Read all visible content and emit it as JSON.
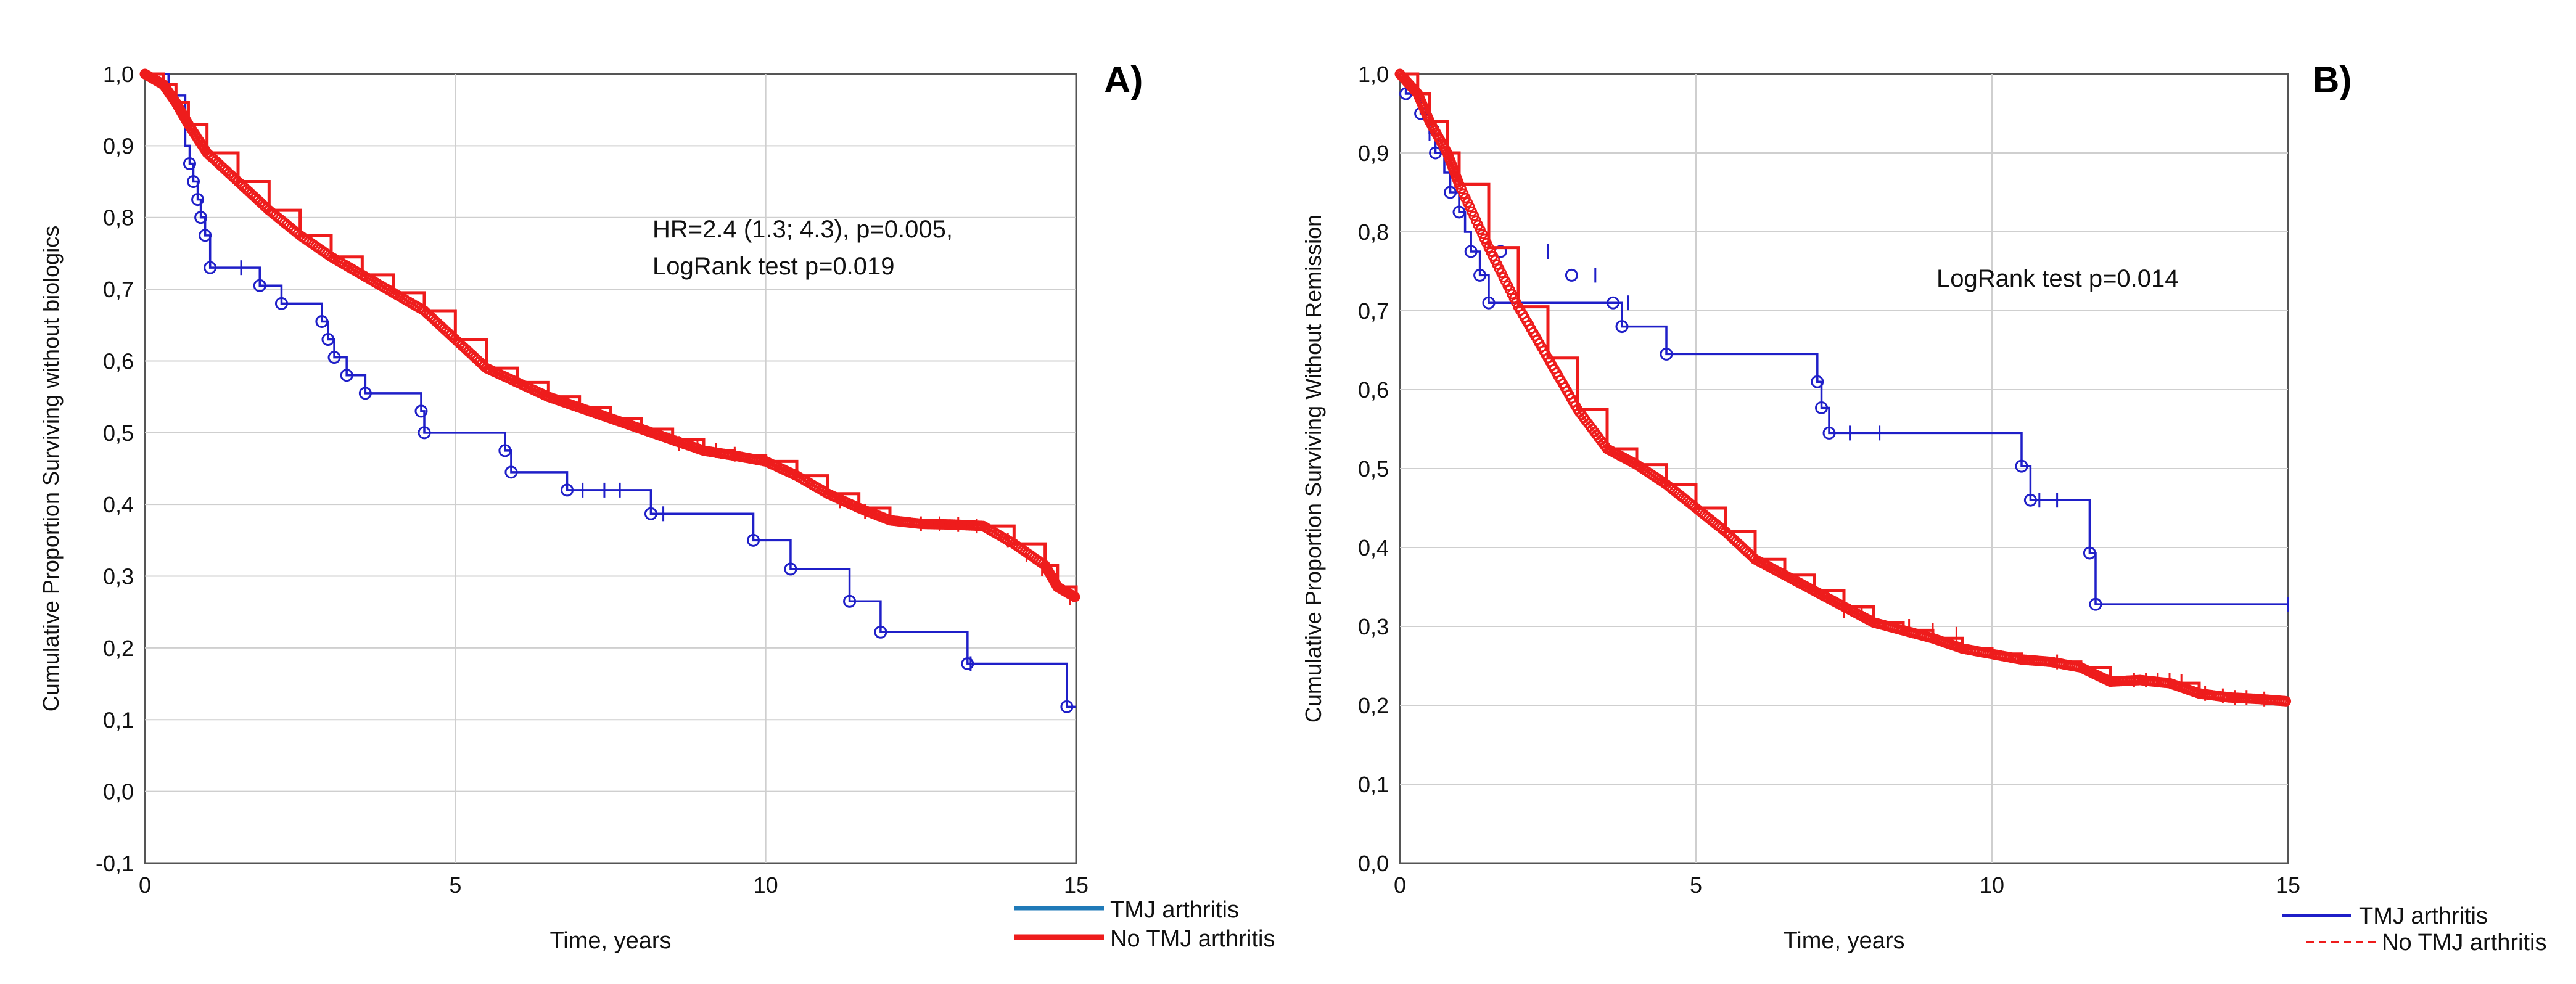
{
  "chart_data": [
    {
      "type": "line",
      "subtype": "kaplan-meier",
      "panel_label": "A)",
      "title": "",
      "xlabel": "Time, years",
      "ylabel": "Cumulative Proportion Surviving without biologics",
      "xlim": [
        0,
        15
      ],
      "ylim": [
        -0.1,
        1.0
      ],
      "xticks": [
        0,
        5,
        10,
        15
      ],
      "xtick_labels": [
        "0",
        "5",
        "10",
        "15"
      ],
      "yticks": [
        -0.1,
        0.0,
        0.1,
        0.2,
        0.3,
        0.4,
        0.5,
        0.6,
        0.7,
        0.8,
        0.9,
        1.0
      ],
      "ytick_labels": [
        "-0,1",
        "0,0",
        "0,1",
        "0,2",
        "0,3",
        "0,4",
        "0,5",
        "0,6",
        "0,7",
        "0,8",
        "0,9",
        "1,0"
      ],
      "grid": true,
      "legend_position": "bottom-right outside",
      "annotations": [
        "HR=2.4 (1.3; 4.3),  p=0.005,",
        "LogRank test p=0.019"
      ],
      "series": [
        {
          "name": "TMJ arthritis",
          "color": "#1f1fc8",
          "legend_color": "#1f7ab8",
          "style": "step",
          "x": [
            0,
            0.38,
            0.65,
            0.72,
            0.78,
            0.85,
            0.9,
            0.97,
            1.05,
            1.85,
            2.2,
            2.85,
            2.95,
            3.05,
            3.25,
            3.55,
            4.45,
            4.5,
            5.8,
            5.9,
            6.8,
            8.15,
            9.8,
            10.4,
            11.35,
            11.85,
            13.25,
            14.85,
            15
          ],
          "y": [
            1.0,
            0.97,
            0.9,
            0.875,
            0.85,
            0.825,
            0.8,
            0.775,
            0.73,
            0.705,
            0.68,
            0.655,
            0.63,
            0.605,
            0.58,
            0.555,
            0.53,
            0.5,
            0.475,
            0.445,
            0.42,
            0.387,
            0.35,
            0.31,
            0.265,
            0.222,
            0.178,
            0.118,
            0.118
          ],
          "circle_x": [
            0.72,
            0.78,
            0.85,
            0.9,
            0.97,
            1.05,
            1.85,
            2.2,
            2.85,
            2.95,
            3.05,
            3.25,
            3.55,
            4.45,
            4.5,
            5.8,
            5.9,
            6.8,
            8.15,
            9.8,
            10.4,
            11.35,
            11.85,
            13.25,
            14.85
          ],
          "circle_y": [
            0.875,
            0.85,
            0.825,
            0.8,
            0.775,
            0.73,
            0.705,
            0.68,
            0.655,
            0.63,
            0.605,
            0.58,
            0.555,
            0.53,
            0.5,
            0.475,
            0.445,
            0.42,
            0.387,
            0.35,
            0.31,
            0.265,
            0.222,
            0.178,
            0.118
          ],
          "censor_x": [
            1.55,
            7.05,
            7.4,
            7.65,
            8.35,
            13.3
          ],
          "censor_y": [
            0.73,
            0.42,
            0.42,
            0.42,
            0.387,
            0.178
          ]
        },
        {
          "name": "No TMJ arthritis",
          "color": "#ee1c1c",
          "legend_color": "#ee1c1c",
          "style": "dense-step",
          "x": [
            0,
            0.3,
            0.5,
            0.7,
            1,
            1.5,
            2,
            2.5,
            3,
            3.5,
            4,
            4.5,
            5,
            5.5,
            6,
            6.5,
            7,
            7.5,
            8,
            8.5,
            9,
            9.5,
            10,
            10.5,
            11,
            11.5,
            12,
            12.5,
            13,
            13.5,
            14,
            14.5,
            14.7,
            15
          ],
          "y": [
            1.0,
            0.985,
            0.96,
            0.93,
            0.89,
            0.85,
            0.81,
            0.775,
            0.745,
            0.72,
            0.695,
            0.67,
            0.63,
            0.59,
            0.57,
            0.55,
            0.535,
            0.52,
            0.505,
            0.49,
            0.475,
            0.468,
            0.46,
            0.44,
            0.415,
            0.395,
            0.378,
            0.373,
            0.372,
            0.37,
            0.345,
            0.315,
            0.285,
            0.27
          ],
          "censor_x": [
            8.6,
            8.9,
            9.2,
            9.5,
            11.2,
            11.6,
            12.5,
            12.8,
            13.1,
            13.4,
            13.9,
            14.2,
            14.45,
            14.6,
            14.9
          ],
          "censor_y": [
            0.485,
            0.48,
            0.475,
            0.47,
            0.405,
            0.39,
            0.373,
            0.373,
            0.372,
            0.37,
            0.35,
            0.33,
            0.31,
            0.3,
            0.27
          ]
        }
      ]
    },
    {
      "type": "line",
      "subtype": "kaplan-meier",
      "panel_label": "B)",
      "title": "",
      "xlabel": "Time, years",
      "ylabel": "Cumulative Proportion Surviving Without Remission",
      "xlim": [
        0,
        15
      ],
      "ylim": [
        0.0,
        1.0
      ],
      "xticks": [
        0,
        5,
        10,
        15
      ],
      "xtick_labels": [
        "0",
        "5",
        "10",
        "15"
      ],
      "yticks": [
        0.0,
        0.1,
        0.2,
        0.3,
        0.4,
        0.5,
        0.6,
        0.7,
        0.8,
        0.9,
        1.0
      ],
      "ytick_labels": [
        "0,0",
        "0,1",
        "0,2",
        "0,3",
        "0,4",
        "0,5",
        "0,6",
        "0,7",
        "0,8",
        "0,9",
        "1,0"
      ],
      "grid": true,
      "legend_position": "bottom-right outside",
      "annotations": [
        "LogRank test p=0.014"
      ],
      "series": [
        {
          "name": "TMJ arthritis",
          "color": "#1f1fc8",
          "legend_color": "#1f1fc8",
          "style": "step",
          "x": [
            0,
            0.1,
            0.35,
            0.5,
            0.6,
            0.75,
            0.85,
            1.0,
            1.1,
            1.2,
            1.35,
            1.5,
            1.7,
            2.9,
            3.6,
            3.75,
            4.5,
            7.05,
            7.12,
            7.25,
            10.5,
            10.65,
            11.65,
            11.75,
            15
          ],
          "y": [
            1.0,
            0.975,
            0.95,
            0.925,
            0.9,
            0.875,
            0.85,
            0.825,
            0.8,
            0.775,
            0.745,
            0.71,
            0.71,
            0.71,
            0.71,
            0.68,
            0.645,
            0.61,
            0.577,
            0.545,
            0.503,
            0.46,
            0.393,
            0.328,
            0.328
          ],
          "circle_x": [
            0.1,
            0.35,
            0.6,
            0.85,
            1.0,
            1.2,
            1.35,
            1.5,
            1.7,
            2.9,
            3.6,
            3.75,
            4.5,
            7.05,
            7.12,
            7.25,
            10.5,
            10.65,
            11.65,
            11.75
          ],
          "circle_y": [
            0.975,
            0.95,
            0.9,
            0.85,
            0.825,
            0.775,
            0.745,
            0.71,
            0.775,
            0.745,
            0.71,
            0.68,
            0.645,
            0.61,
            0.577,
            0.545,
            0.503,
            0.46,
            0.393,
            0.328
          ],
          "censor_x": [
            0.5,
            0.65,
            2.5,
            3.3,
            3.85,
            7.6,
            8.1,
            10.8,
            11.1,
            15
          ],
          "censor_y": [
            0.925,
            0.925,
            0.775,
            0.745,
            0.71,
            0.545,
            0.545,
            0.46,
            0.46,
            0.328
          ]
        },
        {
          "name": "No TMJ arthritis",
          "color": "#ee1c1c",
          "legend_color": "#ee1c1c",
          "style": "dense-step",
          "x": [
            0,
            0.3,
            0.5,
            0.8,
            1,
            1.5,
            2,
            2.5,
            3,
            3.5,
            4,
            4.5,
            5,
            5.5,
            6,
            6.5,
            7,
            7.5,
            8,
            8.5,
            9,
            9.5,
            10,
            10.5,
            11,
            11.5,
            12,
            12.5,
            13,
            13.5,
            14,
            14.5,
            15
          ],
          "y": [
            1.0,
            0.975,
            0.94,
            0.9,
            0.86,
            0.78,
            0.705,
            0.64,
            0.575,
            0.525,
            0.505,
            0.48,
            0.45,
            0.42,
            0.385,
            0.365,
            0.345,
            0.325,
            0.305,
            0.295,
            0.285,
            0.272,
            0.265,
            0.258,
            0.255,
            0.248,
            0.23,
            0.232,
            0.228,
            0.215,
            0.21,
            0.208,
            0.205
          ],
          "censor_x": [
            7.5,
            7.8,
            8.6,
            9.0,
            9.4,
            11.1,
            12.4,
            12.6,
            12.8,
            13.0,
            13.2,
            13.6,
            13.9,
            14.1,
            14.3,
            14.6
          ],
          "censor_y": [
            0.32,
            0.315,
            0.3,
            0.295,
            0.29,
            0.255,
            0.232,
            0.232,
            0.232,
            0.232,
            0.23,
            0.215,
            0.212,
            0.21,
            0.21,
            0.208
          ]
        }
      ]
    }
  ]
}
